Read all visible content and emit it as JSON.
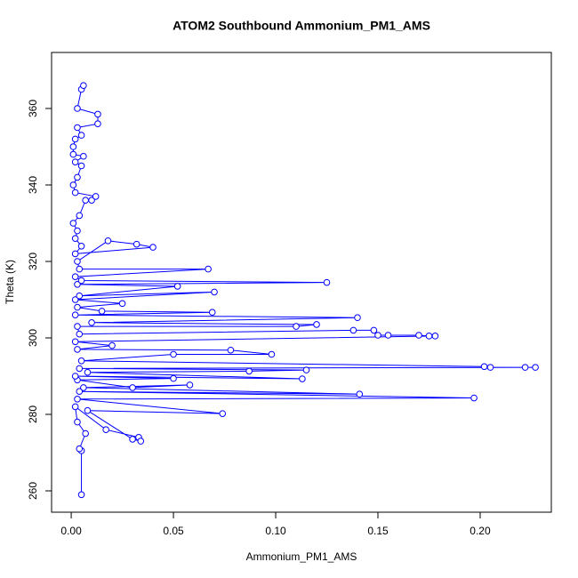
{
  "chart_data": {
    "type": "line",
    "title": "ATOM2 Southbound Ammonium_PM1_AMS",
    "x_label": "Ammonium_PM1_AMS",
    "y_label": "Theta (K)",
    "color": "#0000ff",
    "markers": true,
    "xlim": [
      -0.0096,
      0.2348
    ],
    "ylim": [
      254.42,
      374.65
    ],
    "xticks": [
      {
        "value": 0,
        "label": "0.00"
      },
      {
        "value": 0.05,
        "label": "0.05"
      },
      {
        "value": 0.1,
        "label": "0.10"
      },
      {
        "value": 0.15,
        "label": "0.15"
      },
      {
        "value": 0.2,
        "label": "0.20"
      }
    ],
    "yticks": [
      260,
      280,
      300,
      320,
      340,
      360
    ],
    "x": [
      0.005,
      0.005,
      0.004,
      0.007,
      0.003,
      0.002,
      0.017,
      0.033,
      0.034,
      0.03,
      0.008,
      0.074,
      0.003,
      0.197,
      0.004,
      0.141,
      0.006,
      0.058,
      0.03,
      0.003,
      0.05,
      0.002,
      0.113,
      0.008,
      0.087,
      0.115,
      0.004,
      0.227,
      0.222,
      0.205,
      0.202,
      0.005,
      0.05,
      0.098,
      0.078,
      0.003,
      0.02,
      0.002,
      0.178,
      0.175,
      0.17,
      0.155,
      0.15,
      0.148,
      0.138,
      0.004,
      0.003,
      0.11,
      0.12,
      0.01,
      0.14,
      0.002,
      0.069,
      0.015,
      0.003,
      0.025,
      0.002,
      0.07,
      0.004,
      0.052,
      0.003,
      0.125,
      0.005,
      0.002,
      0.067,
      0.004,
      0.003,
      0.018,
      0.032,
      0.04,
      0.002,
      0.005,
      0.002,
      0.003,
      0.001,
      0.004,
      0.007,
      0.01,
      0.012,
      0.002,
      0.001,
      0.003,
      0.005,
      0.002,
      0.006,
      0.001,
      0.001,
      0.002,
      0.005,
      0.003,
      0.013,
      0.013,
      0.003,
      0.005,
      0.006
    ],
    "values": [
      259,
      270.5,
      271,
      275,
      278,
      282,
      276,
      274,
      273,
      273.5,
      281,
      280.2,
      284,
      284.3,
      286,
      285.3,
      287,
      287.7,
      287,
      289,
      289.4,
      290,
      289.3,
      291,
      291.3,
      291.6,
      292,
      292.3,
      292.3,
      292.3,
      292.5,
      294,
      295.7,
      295.7,
      296.8,
      297,
      298,
      299,
      300.5,
      300.5,
      300.7,
      300.7,
      300.7,
      302,
      302,
      301,
      303,
      303,
      303.5,
      304,
      305.3,
      306,
      306.7,
      307,
      308,
      309,
      310,
      312,
      311,
      313.5,
      314,
      314.5,
      315,
      316,
      318,
      318,
      320,
      325.4,
      324.5,
      323.7,
      322,
      324,
      326,
      328,
      330,
      332,
      336,
      336,
      337,
      338,
      340,
      342,
      345,
      346,
      347.5,
      348,
      350,
      352,
      353,
      355,
      356,
      358.5,
      360,
      365,
      366
    ]
  }
}
